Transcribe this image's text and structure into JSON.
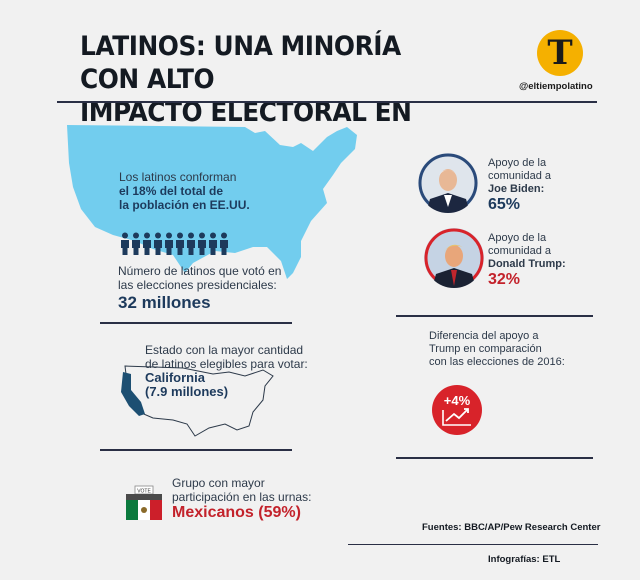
{
  "title": {
    "line1": "LATINOS: UNA MINORÍA CON ALTO",
    "line2": "IMPACTO ELECTORAL EN EE.UU."
  },
  "brand": {
    "logo_letter": "T",
    "handle": "@eltiempolatino"
  },
  "population": {
    "line1": "Los latinos conforman",
    "line2": "el 18% del total de",
    "line3": "la población en EE.UU."
  },
  "voters": {
    "line1": "Número de latinos que votó en",
    "line2": "las elecciones presidenciales:",
    "value": "32 millones",
    "figure_count": 10
  },
  "state": {
    "line1": "Estado con la mayor cantidad",
    "line2": "de latinos elegibles para votar:",
    "name": "California",
    "value": "(7.9 millones)"
  },
  "group": {
    "line1": "Grupo con mayor",
    "line2": "participación en las urnas:",
    "value": "Mexicanos (59%)",
    "vote_label": "VOTE"
  },
  "biden": {
    "line1": "Apoyo de la",
    "line2": "comunidad a",
    "name": "Joe Biden:",
    "value": "65%"
  },
  "trump": {
    "line1": "Apoyo de la",
    "line2": "comunidad a",
    "name": "Donald Trump:",
    "value": "32%"
  },
  "difference": {
    "line1": "Diferencia del apoyo a",
    "line2": "Trump en comparación",
    "line3": "con las elecciones de 2016:",
    "value": "+4%"
  },
  "sources": "Fuentes: BBC/AP/Pew Research Center",
  "credits": "Infografías: ETL",
  "colors": {
    "map_blue": "#72cdee",
    "dark_blue": "#1d3a5c",
    "accent_red": "#d8232a",
    "logo_yellow": "#f5b000"
  }
}
